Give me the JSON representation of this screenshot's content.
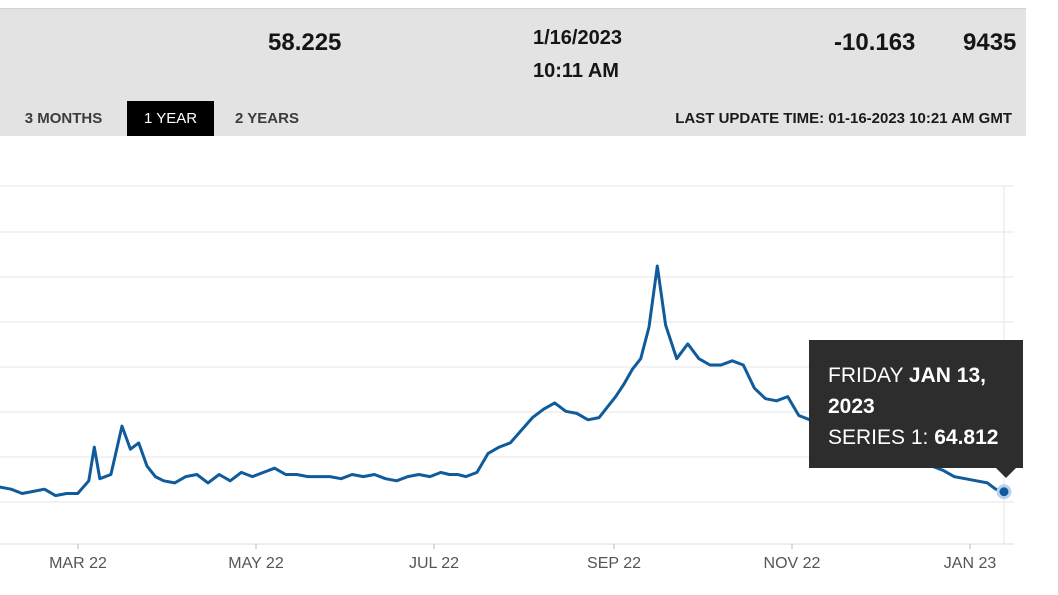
{
  "stats": {
    "last": "58.225",
    "date": "1/16/2023",
    "time": "10:11 AM",
    "change": "-10.163",
    "volume": "9435"
  },
  "range_tabs": [
    {
      "label": "3 MONTHS",
      "active": false
    },
    {
      "label": "1 YEAR",
      "active": true
    },
    {
      "label": "2 YEARS",
      "active": false
    }
  ],
  "last_update": "LAST UPDATE TIME: 01-16-2023 10:21 AM GMT",
  "tooltip": {
    "day": "FRIDAY",
    "date_a": "JAN 13,",
    "date_b": "2023",
    "series_label": "SERIES 1:",
    "series_value": "64.812"
  },
  "colors": {
    "line": "#0f5b9c",
    "tooltip_bg": "#2d2d2d",
    "active_tab": "#000000",
    "header_bg": "#e3e3e3"
  },
  "chart_data": {
    "type": "line",
    "x_tick_labels": [
      "MAR 22",
      "MAY 22",
      "JUL 22",
      "SEP 22",
      "NOV 22",
      "JAN 23"
    ],
    "grid": true,
    "ylim": [
      40,
      210
    ],
    "highlight_point": {
      "x": "2023-01-13",
      "y": 64.812
    },
    "series": [
      {
        "x": [
          "2022-01-16",
          "2022-01-20",
          "2022-01-24",
          "2022-01-28",
          "2022-02-01",
          "2022-02-05",
          "2022-02-09",
          "2022-02-13",
          "2022-02-17",
          "2022-02-19",
          "2022-02-21",
          "2022-02-25",
          "2022-03-01",
          "2022-03-04",
          "2022-03-07",
          "2022-03-10",
          "2022-03-13",
          "2022-03-16",
          "2022-03-20",
          "2022-03-24",
          "2022-03-28",
          "2022-04-01",
          "2022-04-05",
          "2022-04-09",
          "2022-04-13",
          "2022-04-17",
          "2022-04-21",
          "2022-04-25",
          "2022-04-29",
          "2022-05-03",
          "2022-05-07",
          "2022-05-11",
          "2022-05-15",
          "2022-05-19",
          "2022-05-23",
          "2022-05-27",
          "2022-05-31",
          "2022-06-04",
          "2022-06-08",
          "2022-06-12",
          "2022-06-16",
          "2022-06-20",
          "2022-06-24",
          "2022-06-27",
          "2022-06-30",
          "2022-07-03",
          "2022-07-07",
          "2022-07-11",
          "2022-07-15",
          "2022-07-19",
          "2022-07-23",
          "2022-07-27",
          "2022-07-31",
          "2022-08-04",
          "2022-08-08",
          "2022-08-12",
          "2022-08-16",
          "2022-08-20",
          "2022-08-23",
          "2022-08-26",
          "2022-08-29",
          "2022-09-01",
          "2022-09-04",
          "2022-09-07",
          "2022-09-10",
          "2022-09-13",
          "2022-09-17",
          "2022-09-21",
          "2022-09-25",
          "2022-09-29",
          "2022-10-03",
          "2022-10-07",
          "2022-10-11",
          "2022-10-15",
          "2022-10-19",
          "2022-10-23",
          "2022-10-27",
          "2022-10-31",
          "2022-11-04",
          "2022-11-08",
          "2022-11-12",
          "2022-11-16",
          "2022-11-20",
          "2022-11-24",
          "2022-11-28",
          "2022-12-02",
          "2022-12-06",
          "2022-12-10",
          "2022-12-14",
          "2022-12-18",
          "2022-12-22",
          "2022-12-26",
          "2022-12-30",
          "2023-01-03",
          "2023-01-07",
          "2023-01-10",
          "2023-01-13"
        ],
        "y": [
          67,
          66,
          64,
          65,
          66,
          63,
          64,
          64,
          70,
          86,
          71,
          73,
          96,
          85,
          88,
          77,
          72,
          70,
          69,
          72,
          73,
          69,
          73,
          70,
          74,
          72,
          74,
          76,
          73,
          73,
          72,
          72,
          72,
          71,
          73,
          72,
          73,
          71,
          70,
          72,
          73,
          72,
          74,
          73,
          73,
          72,
          74,
          83,
          86,
          88,
          94,
          100,
          104,
          107,
          103,
          102,
          99,
          100,
          105,
          110,
          116,
          123,
          128,
          143,
          172,
          144,
          128,
          135,
          128,
          125,
          125,
          127,
          125,
          114,
          109,
          108,
          110,
          101,
          99,
          95,
          96,
          93,
          91,
          90,
          88,
          86,
          85,
          82,
          79,
          77,
          75,
          72,
          71,
          70,
          69,
          66,
          64.812
        ]
      }
    ]
  }
}
